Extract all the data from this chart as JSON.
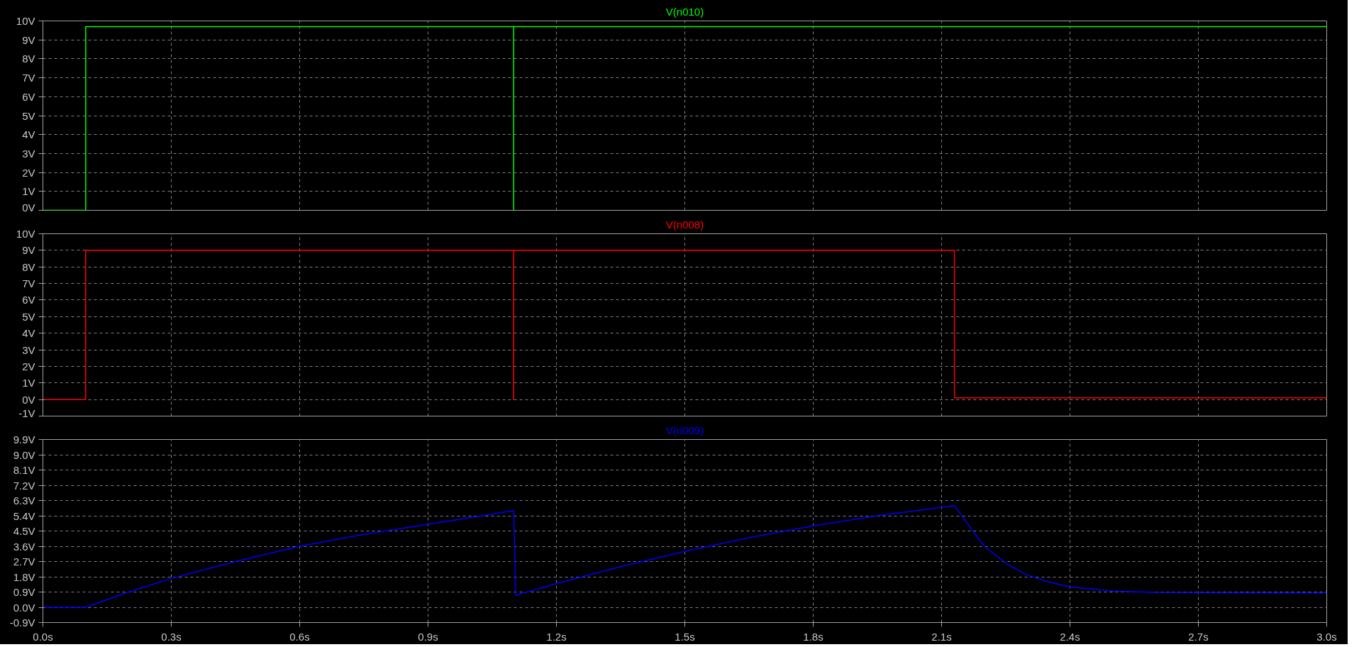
{
  "chart_data": [
    {
      "type": "line",
      "title": "V(n010)",
      "xlim": [
        0,
        3
      ],
      "ylim": [
        0,
        10
      ],
      "grid": true,
      "tick_labels": "y",
      "xticks": [
        0,
        0.3,
        0.6,
        0.9,
        1.2,
        1.5,
        1.8,
        2.1,
        2.4,
        2.7,
        3
      ],
      "yticks": [
        {
          "value": 0,
          "label": "0V"
        },
        {
          "value": 1,
          "label": "1V"
        },
        {
          "value": 2,
          "label": "2V"
        },
        {
          "value": 3,
          "label": "3V"
        },
        {
          "value": 4,
          "label": "4V"
        },
        {
          "value": 5,
          "label": "5V"
        },
        {
          "value": 6,
          "label": "6V"
        },
        {
          "value": 7,
          "label": "7V"
        },
        {
          "value": 8,
          "label": "8V"
        },
        {
          "value": 9,
          "label": "9V"
        },
        {
          "value": 10,
          "label": "10V"
        }
      ],
      "series": [
        {
          "color": "#00ff00",
          "x": [
            0,
            0.1,
            0.1,
            1.1,
            1.1,
            1.1,
            3
          ],
          "values": [
            0,
            0,
            9.7,
            9.7,
            0,
            9.7,
            9.7
          ]
        }
      ]
    },
    {
      "type": "line",
      "title": "V(n008)",
      "xlim": [
        0,
        3
      ],
      "ylim": [
        -1,
        10
      ],
      "grid": true,
      "tick_labels": "y",
      "xticks": [
        0,
        0.3,
        0.6,
        0.9,
        1.2,
        1.5,
        1.8,
        2.1,
        2.4,
        2.7,
        3
      ],
      "yticks": [
        {
          "value": -1,
          "label": "-1V"
        },
        {
          "value": 0,
          "label": "0V"
        },
        {
          "value": 1,
          "label": "1V"
        },
        {
          "value": 2,
          "label": "2V"
        },
        {
          "value": 3,
          "label": "3V"
        },
        {
          "value": 4,
          "label": "4V"
        },
        {
          "value": 5,
          "label": "5V"
        },
        {
          "value": 6,
          "label": "6V"
        },
        {
          "value": 7,
          "label": "7V"
        },
        {
          "value": 8,
          "label": "8V"
        },
        {
          "value": 9,
          "label": "9V"
        },
        {
          "value": 10,
          "label": "10V"
        }
      ],
      "series": [
        {
          "color": "#ff0000",
          "x": [
            0,
            0.1,
            0.1,
            1.1,
            1.1,
            1.1,
            2.13,
            2.13,
            3
          ],
          "values": [
            0,
            0,
            9,
            9,
            0,
            9,
            9,
            0.1,
            0.1
          ]
        }
      ]
    },
    {
      "type": "line",
      "title": "V(n009)",
      "xlim": [
        0,
        3
      ],
      "ylim": [
        -0.9,
        9.9
      ],
      "grid": true,
      "xticks": [
        {
          "value": 0,
          "label": "0.0s"
        },
        {
          "value": 0.3,
          "label": "0.3s"
        },
        {
          "value": 0.6,
          "label": "0.6s"
        },
        {
          "value": 0.9,
          "label": "0.9s"
        },
        {
          "value": 1.2,
          "label": "1.2s"
        },
        {
          "value": 1.5,
          "label": "1.5s"
        },
        {
          "value": 1.8,
          "label": "1.8s"
        },
        {
          "value": 2.1,
          "label": "2.1s"
        },
        {
          "value": 2.4,
          "label": "2.4s"
        },
        {
          "value": 2.7,
          "label": "2.7s"
        },
        {
          "value": 3,
          "label": "3.0s"
        }
      ],
      "yticks": [
        {
          "value": -0.9,
          "label": "-0.9V"
        },
        {
          "value": 0,
          "label": "0.0V"
        },
        {
          "value": 0.9,
          "label": "0.9V"
        },
        {
          "value": 1.8,
          "label": "1.8V"
        },
        {
          "value": 2.7,
          "label": "2.7V"
        },
        {
          "value": 3.6,
          "label": "3.6V"
        },
        {
          "value": 4.5,
          "label": "4.5V"
        },
        {
          "value": 5.4,
          "label": "5.4V"
        },
        {
          "value": 6.3,
          "label": "6.3V"
        },
        {
          "value": 7.2,
          "label": "7.2V"
        },
        {
          "value": 8.1,
          "label": "8.1V"
        },
        {
          "value": 9.0,
          "label": "9.0V"
        },
        {
          "value": 9.9,
          "label": "9.9V"
        }
      ],
      "series": [
        {
          "color": "#0000ff",
          "x": [
            0,
            0.1,
            0.2,
            0.3,
            0.45,
            0.6,
            0.75,
            0.9,
            1.0,
            1.1,
            1.105,
            1.2,
            1.35,
            1.5,
            1.65,
            1.8,
            1.95,
            2.1,
            2.13,
            2.17,
            2.2,
            2.25,
            2.3,
            2.35,
            2.4,
            2.5,
            2.6,
            2.8,
            3.0
          ],
          "values": [
            0,
            0,
            0.9,
            1.7,
            2.7,
            3.6,
            4.3,
            4.9,
            5.3,
            5.7,
            0.7,
            1.4,
            2.4,
            3.3,
            4.1,
            4.8,
            5.4,
            5.9,
            6.0,
            4.6,
            3.6,
            2.6,
            1.9,
            1.5,
            1.2,
            0.95,
            0.88,
            0.86,
            0.85
          ]
        }
      ]
    }
  ]
}
